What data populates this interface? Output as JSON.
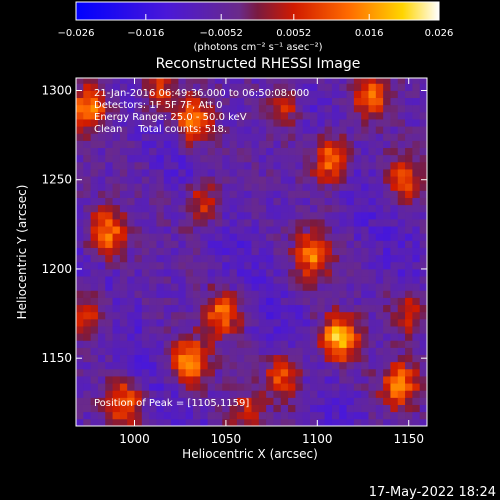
{
  "colorbar": {
    "ticks": [
      "−0.026",
      "−0.016",
      "−0.0052",
      "0.0052",
      "0.016",
      "0.026"
    ],
    "tick_values": [
      -0.026,
      -0.016,
      -0.0052,
      0.0052,
      0.016,
      0.026
    ],
    "units": "(photons cm⁻² s⁻¹ asec⁻²)"
  },
  "chart_data": {
    "type": "heatmap",
    "title": "Reconstructed RHESSI Image",
    "xlabel": "Heliocentric X (arcsec)",
    "ylabel": "Heliocentric Y (arcsec)",
    "xlim": [
      968,
      1160
    ],
    "ylim": [
      1112,
      1307
    ],
    "xticks": [
      "1000",
      "1050",
      "1100",
      "1150"
    ],
    "xtick_values": [
      1000,
      1050,
      1100,
      1150
    ],
    "yticks": [
      "1150",
      "1200",
      "1250",
      "1300"
    ],
    "ytick_values": [
      1150,
      1200,
      1250,
      1300
    ],
    "zlim": [
      -0.026,
      0.026
    ],
    "colormap": "blue-purple-red-orange-yellow-white",
    "grid": false,
    "annotations": [
      "21-Jan-2016 06:49:36.000 to 06:50:08.000",
      "Detectors: 1F 5F 7F, Att 0",
      "Energy Range: 25.0 - 50.0 keV",
      "Clean     Total counts: 518."
    ],
    "peak_label": "Position of Peak = [1105,1159]",
    "peak_position": [
      1105,
      1159
    ],
    "bright_sources": [
      {
        "x": 975,
        "y": 1290,
        "amp": 0.02
      },
      {
        "x": 985,
        "y": 1220,
        "amp": 0.02
      },
      {
        "x": 975,
        "y": 1175,
        "amp": 0.016
      },
      {
        "x": 995,
        "y": 1125,
        "amp": 0.018
      },
      {
        "x": 1012,
        "y": 1300,
        "amp": 0.015
      },
      {
        "x": 1032,
        "y": 1283,
        "amp": 0.022
      },
      {
        "x": 1038,
        "y": 1237,
        "amp": 0.016
      },
      {
        "x": 1048,
        "y": 1175,
        "amp": 0.018
      },
      {
        "x": 1030,
        "y": 1148,
        "amp": 0.022
      },
      {
        "x": 1082,
        "y": 1292,
        "amp": 0.014
      },
      {
        "x": 1108,
        "y": 1262,
        "amp": 0.024
      },
      {
        "x": 1130,
        "y": 1297,
        "amp": 0.018
      },
      {
        "x": 1098,
        "y": 1208,
        "amp": 0.02
      },
      {
        "x": 1112,
        "y": 1161,
        "amp": 0.026
      },
      {
        "x": 1082,
        "y": 1140,
        "amp": 0.017
      },
      {
        "x": 1148,
        "y": 1250,
        "amp": 0.014
      },
      {
        "x": 1152,
        "y": 1178,
        "amp": 0.016
      },
      {
        "x": 1145,
        "y": 1135,
        "amp": 0.02
      },
      {
        "x": 1060,
        "y": 1120,
        "amp": 0.01
      }
    ]
  },
  "footer_timestamp": "17-May-2022 18:24"
}
